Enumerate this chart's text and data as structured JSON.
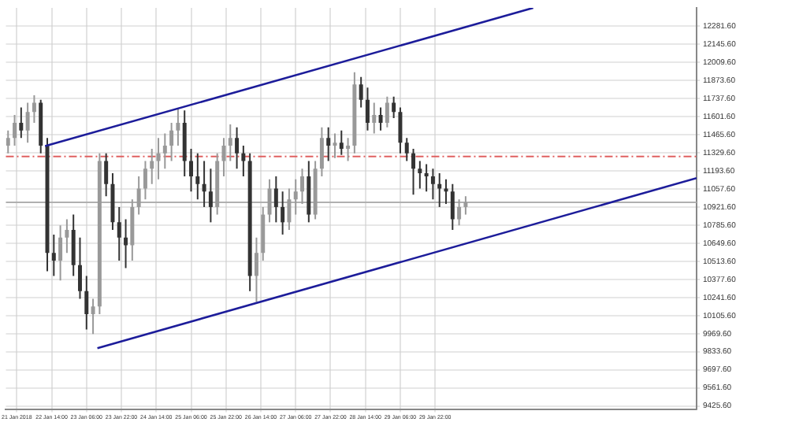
{
  "chart_data": {
    "type": "candlestick",
    "x": [
      "2018-01-21T18:00",
      "2018-01-21T21:00",
      "2018-01-22T00:00",
      "2018-01-22T03:00",
      "2018-01-22T06:00",
      "2018-01-22T09:00",
      "2018-01-22T12:00",
      "2018-01-22T15:00",
      "2018-01-22T18:00",
      "2018-01-22T21:00",
      "2018-01-23T00:00",
      "2018-01-23T03:00",
      "2018-01-23T06:00",
      "2018-01-23T09:00",
      "2018-01-23T12:00",
      "2018-01-23T15:00",
      "2018-01-23T18:00",
      "2018-01-23T21:00",
      "2018-01-24T00:00",
      "2018-01-24T03:00",
      "2018-01-24T06:00",
      "2018-01-24T09:00",
      "2018-01-24T12:00",
      "2018-01-24T15:00",
      "2018-01-24T18:00",
      "2018-01-24T21:00",
      "2018-01-25T00:00",
      "2018-01-25T03:00",
      "2018-01-25T06:00",
      "2018-01-25T09:00",
      "2018-01-25T12:00",
      "2018-01-25T15:00",
      "2018-01-25T18:00",
      "2018-01-25T21:00",
      "2018-01-26T00:00",
      "2018-01-26T03:00",
      "2018-01-26T06:00",
      "2018-01-26T09:00",
      "2018-01-26T12:00",
      "2018-01-26T15:00",
      "2018-01-26T18:00",
      "2018-01-26T21:00",
      "2018-01-27T00:00",
      "2018-01-27T03:00",
      "2018-01-27T06:00",
      "2018-01-27T09:00",
      "2018-01-27T12:00",
      "2018-01-27T15:00",
      "2018-01-27T18:00",
      "2018-01-27T21:00",
      "2018-01-28T00:00",
      "2018-01-28T03:00",
      "2018-01-28T06:00",
      "2018-01-28T09:00",
      "2018-01-28T12:00",
      "2018-01-28T15:00",
      "2018-01-28T18:00",
      "2018-01-28T21:00",
      "2018-01-29T00:00",
      "2018-01-29T03:00",
      "2018-01-29T06:00",
      "2018-01-29T09:00",
      "2018-01-29T12:00",
      "2018-01-29T15:00",
      "2018-01-29T18:00",
      "2018-01-29T21:00",
      "2018-01-30T00:00",
      "2018-01-30T03:00",
      "2018-01-30T06:00",
      "2018-01-30T09:00",
      "2018-01-30T12:00"
    ],
    "ohlc": [
      [
        11383,
        11498,
        11326,
        11441
      ],
      [
        11441,
        11614,
        11383,
        11556
      ],
      [
        11556,
        11671,
        11441,
        11498
      ],
      [
        11498,
        11706,
        11406,
        11637
      ],
      [
        11637,
        11763,
        11556,
        11706
      ],
      [
        11706,
        11729,
        11326,
        11383
      ],
      [
        11383,
        11441,
        10439,
        10577
      ],
      [
        10577,
        10715,
        10404,
        10519
      ],
      [
        10519,
        10784,
        10369,
        10692
      ],
      [
        10692,
        10830,
        10577,
        10750
      ],
      [
        10750,
        10865,
        10404,
        10485
      ],
      [
        10485,
        10692,
        10231,
        10289
      ],
      [
        10289,
        10404,
        10001,
        10116
      ],
      [
        10116,
        10231,
        9966,
        10174
      ],
      [
        10174,
        11326,
        10116,
        11268
      ],
      [
        11268,
        11326,
        11003,
        11095
      ],
      [
        11095,
        11176,
        10750,
        10807
      ],
      [
        10807,
        10922,
        10519,
        10692
      ],
      [
        10692,
        10830,
        10462,
        10634
      ],
      [
        10634,
        10980,
        10519,
        10922
      ],
      [
        10922,
        11153,
        10865,
        11061
      ],
      [
        11061,
        11268,
        10980,
        11210
      ],
      [
        11210,
        11360,
        11095,
        11268
      ],
      [
        11268,
        11441,
        11130,
        11326
      ],
      [
        11326,
        11475,
        11210,
        11383
      ],
      [
        11383,
        11556,
        11268,
        11498
      ],
      [
        11498,
        11660,
        11383,
        11556
      ],
      [
        11556,
        11648,
        11153,
        11268
      ],
      [
        11268,
        11360,
        11038,
        11153
      ],
      [
        11153,
        11326,
        10980,
        11095
      ],
      [
        11095,
        11268,
        10922,
        11038
      ],
      [
        11038,
        11210,
        10807,
        10922
      ],
      [
        10922,
        11326,
        10865,
        11268
      ],
      [
        11268,
        11441,
        11153,
        11383
      ],
      [
        11383,
        11544,
        11268,
        11441
      ],
      [
        11441,
        11521,
        11210,
        11326
      ],
      [
        11326,
        11383,
        11153,
        11268
      ],
      [
        11268,
        11326,
        10289,
        10404
      ],
      [
        10404,
        10692,
        10208,
        10577
      ],
      [
        10577,
        10922,
        10519,
        10865
      ],
      [
        10865,
        11130,
        10807,
        11061
      ],
      [
        11061,
        11153,
        10807,
        10922
      ],
      [
        10922,
        11038,
        10715,
        10807
      ],
      [
        10807,
        11061,
        10750,
        10980
      ],
      [
        10980,
        11130,
        10865,
        11038
      ],
      [
        11038,
        11210,
        10945,
        11153
      ],
      [
        11153,
        11268,
        10807,
        10865
      ],
      [
        10865,
        11268,
        10830,
        11210
      ],
      [
        11210,
        11521,
        11153,
        11441
      ],
      [
        11441,
        11521,
        11268,
        11383
      ],
      [
        11383,
        11475,
        11291,
        11406
      ],
      [
        11406,
        11498,
        11314,
        11360
      ],
      [
        11360,
        11441,
        11268,
        11383
      ],
      [
        11383,
        11936,
        11326,
        11844
      ],
      [
        11844,
        11901,
        11671,
        11729
      ],
      [
        11729,
        11821,
        11498,
        11556
      ],
      [
        11556,
        11706,
        11475,
        11614
      ],
      [
        11614,
        11671,
        11498,
        11556
      ],
      [
        11556,
        11752,
        11521,
        11706
      ],
      [
        11706,
        11752,
        11591,
        11637
      ],
      [
        11637,
        11671,
        11326,
        11406
      ],
      [
        11406,
        11441,
        11268,
        11326
      ],
      [
        11326,
        11360,
        11015,
        11210
      ],
      [
        11210,
        11268,
        11061,
        11176
      ],
      [
        11176,
        11245,
        11038,
        11153
      ],
      [
        11153,
        11210,
        10980,
        11095
      ],
      [
        11095,
        11176,
        10922,
        11061
      ],
      [
        11061,
        11130,
        10945,
        11038
      ],
      [
        11038,
        11095,
        10750,
        10830
      ],
      [
        10830,
        10980,
        10784,
        10922
      ],
      [
        10922,
        11003,
        10865,
        10957
      ]
    ],
    "colors": [
      "#999999",
      "#999999",
      "#333333",
      "#999999",
      "#999999",
      "#333333",
      "#333333",
      "#333333",
      "#999999",
      "#999999",
      "#333333",
      "#333333",
      "#333333",
      "#999999",
      "#999999",
      "#333333",
      "#333333",
      "#333333",
      "#333333",
      "#999999",
      "#999999",
      "#999999",
      "#999999",
      "#999999",
      "#999999",
      "#999999",
      "#999999",
      "#333333",
      "#333333",
      "#333333",
      "#333333",
      "#333333",
      "#999999",
      "#999999",
      "#999999",
      "#333333",
      "#333333",
      "#333333",
      "#999999",
      "#999999",
      "#999999",
      "#333333",
      "#333333",
      "#999999",
      "#999999",
      "#999999",
      "#333333",
      "#999999",
      "#999999",
      "#333333",
      "#999999",
      "#333333",
      "#999999",
      "#999999",
      "#333333",
      "#333333",
      "#999999",
      "#333333",
      "#999999",
      "#333333",
      "#333333",
      "#333333",
      "#333333",
      "#333333",
      "#333333",
      "#333333",
      "#333333",
      "#333333",
      "#333333",
      "#999999",
      "#999999"
    ],
    "series": [
      {
        "type": "line",
        "color": "#1c1c9a",
        "x": [
          "2018-01-22T11:00",
          "2018-01-31T19:00"
        ],
        "values": [
          11380,
          12420
        ]
      },
      {
        "type": "line",
        "color": "#1c1c9a",
        "x": [
          "2018-01-23T11:00",
          "2018-02-03T22:00"
        ],
        "values": [
          9860,
          11140
        ]
      }
    ],
    "ref_lines": [
      {
        "axis": "y",
        "value": 11302,
        "color": "#e06060",
        "line_style": "dashed"
      },
      {
        "axis": "y",
        "value": 10957,
        "color": "#b0b0b0",
        "line_style": "solid"
      }
    ],
    "xlim": [
      "2018-01-21T17:00",
      "2018-02-03T22:00"
    ],
    "xticks": [
      {
        "value": "2018-01-21T22:00",
        "label": "21 Jan 2018"
      },
      {
        "value": "2018-01-22T14:00",
        "label": "22 Jan 14:00"
      },
      {
        "value": "2018-01-23T06:00",
        "label": "23 Jan 06:00"
      },
      {
        "value": "2018-01-23T22:00",
        "label": "23 Jan 22:00"
      },
      {
        "value": "2018-01-24T14:00",
        "label": "24 Jan 14:00"
      },
      {
        "value": "2018-01-25T06:00",
        "label": "25 Jan 06:00"
      },
      {
        "value": "2018-01-25T22:00",
        "label": "25 Jan 22:00"
      },
      {
        "value": "2018-01-26T14:00",
        "label": "26 Jan 14:00"
      },
      {
        "value": "2018-01-27T06:00",
        "label": "27 Jan 06:00"
      },
      {
        "value": "2018-01-27T22:00",
        "label": "27 Jan 22:00"
      },
      {
        "value": "2018-01-28T14:00",
        "label": "28 Jan 14:00"
      },
      {
        "value": "2018-01-29T06:00",
        "label": "29 Jan 06:00"
      },
      {
        "value": "2018-01-29T22:00",
        "label": "29 Jan 22:00"
      }
    ],
    "ylim": [
      9402,
      12420
    ],
    "yticks": [
      {
        "value": 12281.6,
        "label": "12281.60"
      },
      {
        "value": 12145.6,
        "label": "12145.60"
      },
      {
        "value": 12009.6,
        "label": "12009.60"
      },
      {
        "value": 11873.6,
        "label": "11873.60"
      },
      {
        "value": 11737.6,
        "label": "11737.60"
      },
      {
        "value": 11601.6,
        "label": "11601.60"
      },
      {
        "value": 11465.6,
        "label": "11465.60"
      },
      {
        "value": 11329.6,
        "label": "11329.60"
      },
      {
        "value": 11193.6,
        "label": "11193.60"
      },
      {
        "value": 11057.6,
        "label": "11057.60"
      },
      {
        "value": 10921.6,
        "label": "10921.60"
      },
      {
        "value": 10785.6,
        "label": "10785.60"
      },
      {
        "value": 10649.6,
        "label": "10649.60"
      },
      {
        "value": 10513.6,
        "label": "10513.60"
      },
      {
        "value": 10377.6,
        "label": "10377.60"
      },
      {
        "value": 10241.6,
        "label": "10241.60"
      },
      {
        "value": 10105.6,
        "label": "10105.60"
      },
      {
        "value": 9969.6,
        "label": "9969.60"
      },
      {
        "value": 9833.6,
        "label": "9833.60"
      },
      {
        "value": 9697.6,
        "label": "9697.60"
      },
      {
        "value": 9561.6,
        "label": "9561.60"
      },
      {
        "value": 9425.6,
        "label": "9425.60"
      }
    ],
    "grid": true
  }
}
